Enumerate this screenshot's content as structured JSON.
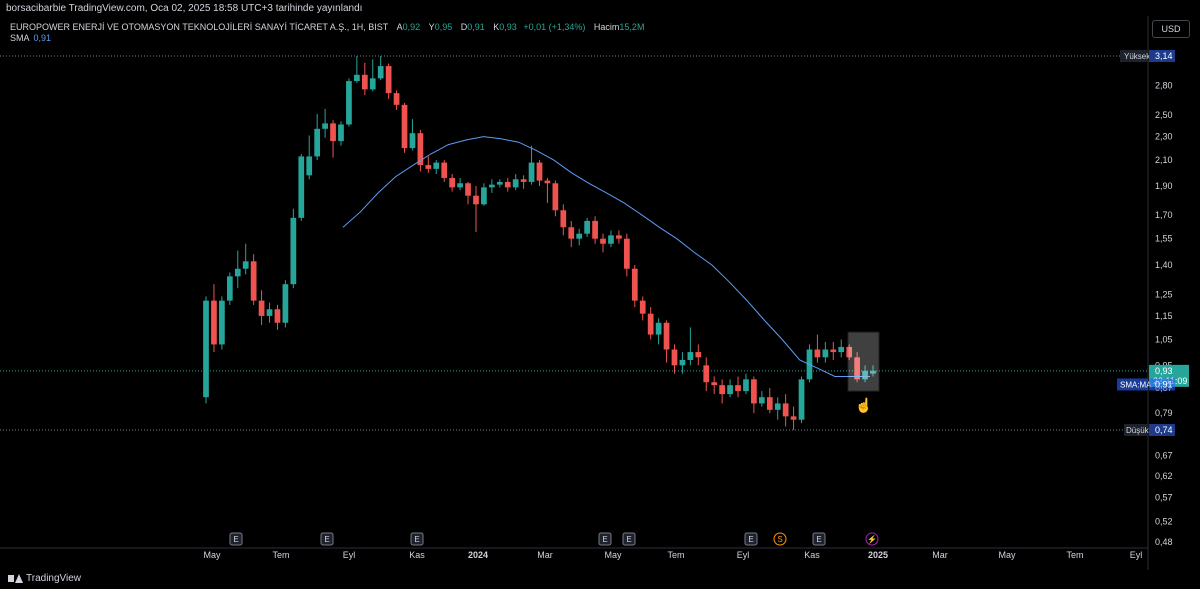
{
  "header": {
    "publish_line": "borsacibarbie TradingView.com, Oca 02, 2025 18:58 UTC+3 tarihinde yayınlandı"
  },
  "legend": {
    "symbol": "EUROPOWER ENERJİ VE OTOMASYON TEKNOLOJİLERİ SANAYİ TİCARET A.Ş., 1H, BIST",
    "open_label": "A",
    "open": "0,92",
    "high_label": "Y",
    "high": "0,95",
    "low_label": "D",
    "low": "0,91",
    "close_label": "K",
    "close": "0,93",
    "change": "+0,01 (+1,34%)",
    "volume_label": "Hacim",
    "volume": "15,2M",
    "sma_label": "SMA",
    "sma_value": "0,91"
  },
  "currency_button": "USD",
  "footer": {
    "brand": "TradingView"
  },
  "icons": {
    "brand": "tradingview-logo-icon",
    "cursor": "hand-pointer-icon"
  },
  "colors": {
    "up": "#26a69a",
    "down": "#ef5350",
    "sma": "#5b9cf6",
    "background": "#000000",
    "axis_text": "#d1d4dc"
  },
  "chart_data": {
    "type": "candlestick",
    "title": "EUROPOWER ENERJİ VE OTOMASYON TEKNOLOJİLERİ SANAYİ TİCARET A.Ş., 1H, BIST",
    "y_scale": "log",
    "ylim": [
      0.48,
      3.14
    ],
    "y_ticks": [
      "3,14",
      "2,80",
      "2,50",
      "2,30",
      "2,10",
      "1,90",
      "1,70",
      "1,55",
      "1,40",
      "1,25",
      "1,15",
      "1,05",
      "0,95",
      "0,87",
      "0,79",
      "0,74",
      "0,67",
      "0,62",
      "0,57",
      "0,52",
      "0,48"
    ],
    "x_ticks": [
      "May",
      "Tem",
      "Eyl",
      "Kas",
      "2024",
      "Mar",
      "May",
      "Tem",
      "Eyl",
      "Kas",
      "2025",
      "Mar",
      "May",
      "Tem",
      "Eyl"
    ],
    "high_marker": {
      "label": "Yüksek",
      "value": "3,14"
    },
    "low_marker": {
      "label": "Düşük",
      "value": "0,74"
    },
    "last_price": {
      "value": "0,93",
      "countdown": "23:11:09"
    },
    "sma_marker": {
      "label": "SMA:MA",
      "value": "0,91"
    },
    "events": [
      {
        "label": "E",
        "type": "earnings"
      },
      {
        "label": "E",
        "type": "earnings"
      },
      {
        "label": "E",
        "type": "earnings"
      },
      {
        "label": "E",
        "type": "earnings"
      },
      {
        "label": "E",
        "type": "earnings"
      },
      {
        "label": "E",
        "type": "earnings"
      },
      {
        "label": "S",
        "type": "split"
      },
      {
        "label": "E",
        "type": "earnings"
      },
      {
        "label": "⚡",
        "type": "news"
      }
    ],
    "candles": [
      [
        0.84,
        1.22,
        1.24,
        0.82
      ],
      [
        1.22,
        1.03,
        1.3,
        1.0
      ],
      [
        1.03,
        1.22,
        1.24,
        1.01
      ],
      [
        1.22,
        1.34,
        1.36,
        1.2
      ],
      [
        1.34,
        1.38,
        1.48,
        1.28
      ],
      [
        1.38,
        1.42,
        1.52,
        1.35
      ],
      [
        1.42,
        1.22,
        1.46,
        1.2
      ],
      [
        1.22,
        1.15,
        1.27,
        1.11
      ],
      [
        1.15,
        1.18,
        1.21,
        1.12
      ],
      [
        1.18,
        1.12,
        1.2,
        1.09
      ],
      [
        1.12,
        1.3,
        1.32,
        1.1
      ],
      [
        1.3,
        1.68,
        1.74,
        1.28
      ],
      [
        1.68,
        2.13,
        2.15,
        1.66
      ],
      [
        1.98,
        2.13,
        2.31,
        1.95
      ],
      [
        2.13,
        2.37,
        2.51,
        2.1
      ],
      [
        2.37,
        2.42,
        2.56,
        2.29
      ],
      [
        2.42,
        2.26,
        2.45,
        2.12
      ],
      [
        2.26,
        2.41,
        2.44,
        2.22
      ],
      [
        2.41,
        2.85,
        2.88,
        2.39
      ],
      [
        2.85,
        2.92,
        3.14,
        2.83
      ],
      [
        2.92,
        2.76,
        3.06,
        2.7
      ],
      [
        2.76,
        2.88,
        3.1,
        2.74
      ],
      [
        2.88,
        3.02,
        3.14,
        2.86
      ],
      [
        3.02,
        2.72,
        3.05,
        2.66
      ],
      [
        2.72,
        2.6,
        2.75,
        2.55
      ],
      [
        2.6,
        2.2,
        2.62,
        2.16
      ],
      [
        2.2,
        2.33,
        2.46,
        2.18
      ],
      [
        2.33,
        2.06,
        2.36,
        2.01
      ],
      [
        2.06,
        2.03,
        2.13,
        2.0
      ],
      [
        2.03,
        2.08,
        2.1,
        1.99
      ],
      [
        2.08,
        1.96,
        2.1,
        1.93
      ],
      [
        1.96,
        1.89,
        1.99,
        1.86
      ],
      [
        1.89,
        1.92,
        1.96,
        1.87
      ],
      [
        1.92,
        1.83,
        1.93,
        1.77
      ],
      [
        1.83,
        1.77,
        1.9,
        1.59
      ],
      [
        1.77,
        1.89,
        1.92,
        1.76
      ],
      [
        1.89,
        1.91,
        1.95,
        1.85
      ],
      [
        1.91,
        1.93,
        1.95,
        1.89
      ],
      [
        1.93,
        1.89,
        1.96,
        1.86
      ],
      [
        1.89,
        1.95,
        1.99,
        1.87
      ],
      [
        1.95,
        1.93,
        1.98,
        1.88
      ],
      [
        1.93,
        2.08,
        2.22,
        1.91
      ],
      [
        2.08,
        1.94,
        2.1,
        1.9
      ],
      [
        1.94,
        1.92,
        1.96,
        1.78
      ],
      [
        1.92,
        1.73,
        1.94,
        1.69
      ],
      [
        1.73,
        1.62,
        1.77,
        1.57
      ],
      [
        1.62,
        1.55,
        1.66,
        1.5
      ],
      [
        1.55,
        1.58,
        1.61,
        1.51
      ],
      [
        1.58,
        1.66,
        1.68,
        1.56
      ],
      [
        1.66,
        1.55,
        1.69,
        1.52
      ],
      [
        1.55,
        1.52,
        1.58,
        1.47
      ],
      [
        1.52,
        1.57,
        1.6,
        1.5
      ],
      [
        1.57,
        1.55,
        1.6,
        1.52
      ],
      [
        1.55,
        1.38,
        1.58,
        1.34
      ],
      [
        1.38,
        1.22,
        1.4,
        1.19
      ],
      [
        1.22,
        1.16,
        1.24,
        1.13
      ],
      [
        1.16,
        1.07,
        1.19,
        1.05
      ],
      [
        1.07,
        1.12,
        1.14,
        1.03
      ],
      [
        1.12,
        1.01,
        1.13,
        0.96
      ],
      [
        1.01,
        0.95,
        1.03,
        0.92
      ],
      [
        0.95,
        0.97,
        1.0,
        0.92
      ],
      [
        0.97,
        1.0,
        1.1,
        0.95
      ],
      [
        1.0,
        0.98,
        1.03,
        0.95
      ],
      [
        0.95,
        0.89,
        0.98,
        0.86
      ],
      [
        0.89,
        0.88,
        0.91,
        0.85
      ],
      [
        0.88,
        0.85,
        0.9,
        0.82
      ],
      [
        0.85,
        0.88,
        0.9,
        0.84
      ],
      [
        0.88,
        0.86,
        0.91,
        0.84
      ],
      [
        0.86,
        0.9,
        0.92,
        0.85
      ],
      [
        0.9,
        0.82,
        0.91,
        0.79
      ],
      [
        0.82,
        0.84,
        0.86,
        0.81
      ],
      [
        0.84,
        0.8,
        0.87,
        0.79
      ],
      [
        0.8,
        0.82,
        0.84,
        0.77
      ],
      [
        0.82,
        0.78,
        0.85,
        0.75
      ],
      [
        0.78,
        0.77,
        0.81,
        0.74
      ],
      [
        0.77,
        0.9,
        0.91,
        0.76
      ],
      [
        0.9,
        1.01,
        1.03,
        0.89
      ],
      [
        1.01,
        0.98,
        1.07,
        0.96
      ],
      [
        0.98,
        1.01,
        1.04,
        0.96
      ],
      [
        1.01,
        1.0,
        1.04,
        0.97
      ],
      [
        1.0,
        1.02,
        1.05,
        0.98
      ],
      [
        1.02,
        0.98,
        1.03,
        0.97
      ],
      [
        0.98,
        0.9,
        1.0,
        0.89
      ],
      [
        0.9,
        0.93,
        0.95,
        0.89
      ],
      [
        0.92,
        0.93,
        0.95,
        0.91
      ]
    ],
    "sma": [
      1.62,
      1.72,
      1.85,
      1.97,
      2.06,
      2.15,
      2.23,
      2.27,
      2.3,
      2.28,
      2.25,
      2.18,
      2.1,
      2.0,
      1.92,
      1.85,
      1.78,
      1.7,
      1.62,
      1.55,
      1.47,
      1.4,
      1.31,
      1.22,
      1.13,
      1.05,
      0.97,
      0.94,
      0.91,
      0.91,
      0.91
    ]
  }
}
